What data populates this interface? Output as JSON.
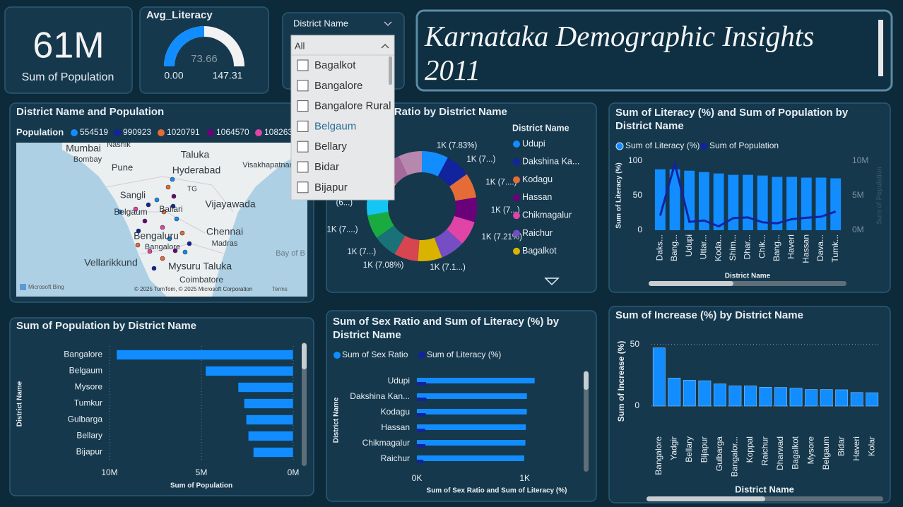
{
  "dashboard_title": "Karnataka Demographic Insights 2011",
  "card": {
    "value": "61M",
    "label": "Sum of Population"
  },
  "slicer": {
    "title": "District Name",
    "selected": "All",
    "options": [
      "Bagalkot",
      "Bangalore",
      "Bangalore Rural",
      "Belgaum",
      "Bellary",
      "Bidar",
      "Bijapur"
    ]
  },
  "chart_data": [
    {
      "type": "gauge",
      "title": "Avg_Literacy",
      "value": 73.66,
      "min": {
        "value": 0,
        "label": "0.00"
      },
      "max": 147.31,
      "color": "#118dff"
    },
    {
      "type": "map",
      "title": "District Name and Population",
      "legend_title": "Population",
      "legend": [
        {
          "name": "554519",
          "color": "#118dff"
        },
        {
          "name": "990923",
          "color": "#12239e"
        },
        {
          "name": "1020791",
          "color": "#e66c37"
        },
        {
          "name": "1064570",
          "color": "#6b007b"
        },
        {
          "name": "108263",
          "color": "#e044a7"
        }
      ],
      "places": [
        "Nashik",
        "Mumbai",
        "Bombay",
        "Taluka",
        "Pune",
        "Hyderabad",
        "Visakhapatnam",
        "Sangli",
        "TG",
        "Belgaum",
        "Ballari",
        "Vijayawada",
        "Bengaluru",
        "Chennai",
        "Bangalore",
        "Madras",
        "Bay of B",
        "Vellarikkund",
        "Mysuru Taluka",
        "Coimbatore"
      ],
      "logo": "Microsoft Bing",
      "attribution": "© 2025 TomTom, © 2025 Microsoft Corporation",
      "terms": "Terms"
    },
    {
      "type": "donut",
      "title": "Sum of Sex Ratio by District Name",
      "legend_title": "District Name",
      "categories": [
        "Udupi",
        "Dakshina Ka...",
        "Kodagu",
        "Hassan",
        "Chikmagalur",
        "Raichur",
        "Bagalkot",
        null,
        null,
        null,
        null,
        null,
        null,
        null
      ],
      "values": [
        1092,
        1020,
        1019,
        1010,
        1006,
        995,
        993,
        988,
        985,
        980,
        968,
        966,
        964,
        962
      ],
      "value_labels": [
        "1K (7.83%)",
        "1K (7...)",
        "1K (7....)",
        "1K (7...)",
        "1K (7.21%)",
        null,
        "1K (7.1...)",
        "1K (7.08%)",
        "1K (7...)",
        "1K (7....)",
        "(6...)",
        null,
        null,
        null
      ],
      "colors": [
        "#118dff",
        "#12239e",
        "#e66c37",
        "#6b007b",
        "#e044a7",
        "#744ec2",
        "#d9b300",
        "#d64550",
        "#197278",
        "#1aab40",
        "#15c6f4",
        "#f4a261",
        "#a66999",
        "#b887ad"
      ]
    },
    {
      "type": "combo",
      "title": "Sum of Literacy (%) and Sum of Population by District Name",
      "categories": [
        "Daks...",
        "Bang...",
        "Udupi",
        "Uttar...",
        "Koda...",
        "Shim...",
        "Dhar...",
        "Chik...",
        "Bang...",
        "Haveri",
        "Hassan",
        "Dava...",
        "Tumk..."
      ],
      "series": [
        {
          "name": "Sum of Literacy (%)",
          "color": "#118dff",
          "values": [
            88,
            88,
            86,
            84,
            82,
            80,
            80,
            79,
            77,
            77,
            76,
            76,
            75
          ]
        },
        {
          "name": "Sum of Population",
          "color": "#12239e",
          "axis": "y2",
          "values": [
            2100000,
            9600000,
            1200000,
            1400000,
            550000,
            1750000,
            1850000,
            1140000,
            1000000,
            1600000,
            1800000,
            1950000,
            2700000
          ]
        }
      ],
      "ylim": [
        0,
        100
      ],
      "yticks": [
        0,
        50,
        100
      ],
      "y2lim": [
        0,
        10000000
      ],
      "y2ticks": [
        {
          "value": 0,
          "label": "0M"
        },
        {
          "value": 5000000,
          "label": "5M"
        },
        {
          "value": 10000000,
          "label": "10M"
        }
      ],
      "x_label": "District Name",
      "y_label": "Sum of Literacy (%)",
      "y2_label": "Sum of Population",
      "grid": false
    },
    {
      "type": "hbar",
      "title": "Sum of Population by District Name",
      "categories": [
        "Bangalore",
        "Belgaum",
        "Mysore",
        "Tumkur",
        "Gulbarga",
        "Bellary",
        "Bijapur"
      ],
      "values": [
        9621551,
        4779661,
        3001127,
        2678980,
        2566326,
        2452595,
        2177331
      ],
      "color": "#118dff",
      "xlim": [
        0,
        10000000
      ],
      "x_reversed": true,
      "xticks": [
        {
          "value": 10000000,
          "label": "10M"
        },
        {
          "value": 5000000,
          "label": "5M"
        },
        {
          "value": 0,
          "label": "0M"
        }
      ],
      "x_label": "Sum of Population",
      "y_label": "District Name",
      "grid": true
    },
    {
      "type": "grouped_hbar",
      "title": "Sum of Sex Ratio and Sum of Literacy (%) by District Name",
      "categories": [
        "Udupi",
        "Dakshina Kan...",
        "Kodagu",
        "Hassan",
        "Chikmagalur",
        "Raichur"
      ],
      "series": [
        {
          "name": "Sum of Sex Ratio",
          "color": "#118dff",
          "values": [
            1092,
            1020,
            1019,
            1010,
            1006,
            995
          ]
        },
        {
          "name": "Sum of Literacy (%)",
          "color": "#12239e",
          "values": [
            86,
            88,
            82,
            76,
            79,
            60
          ]
        }
      ],
      "xlim": [
        0,
        1500
      ],
      "xticks": [
        {
          "value": 0,
          "label": "0K"
        },
        {
          "value": 1000,
          "label": "1K"
        }
      ],
      "x_label": "Sum of Sex Ratio and Sum of Literacy (%)",
      "y_label": "District Name",
      "grid": false
    },
    {
      "type": "bar",
      "title": "Sum of Increase (%) by District Name",
      "categories": [
        "Bangalore",
        "Yadgir",
        "Bellary",
        "Bijapur",
        "Gulbarga",
        "Bangalor...",
        "Koppal",
        "Raichur",
        "Dharwad",
        "Bagalkot",
        "Mysore",
        "Belgaum",
        "Bidar",
        "Haveri",
        "Kolar"
      ],
      "values": [
        47.18,
        22.67,
        21.0,
        20.5,
        17.9,
        16.3,
        16.3,
        15.3,
        15.1,
        14.4,
        13.4,
        13.4,
        13.2,
        11.0,
        10.8
      ],
      "color": "#118dff",
      "ylim": [
        0,
        55
      ],
      "yticks": [
        0,
        50
      ],
      "x_label": "District Name",
      "y_label": "Sum of Increase (%)",
      "grid": true
    }
  ]
}
